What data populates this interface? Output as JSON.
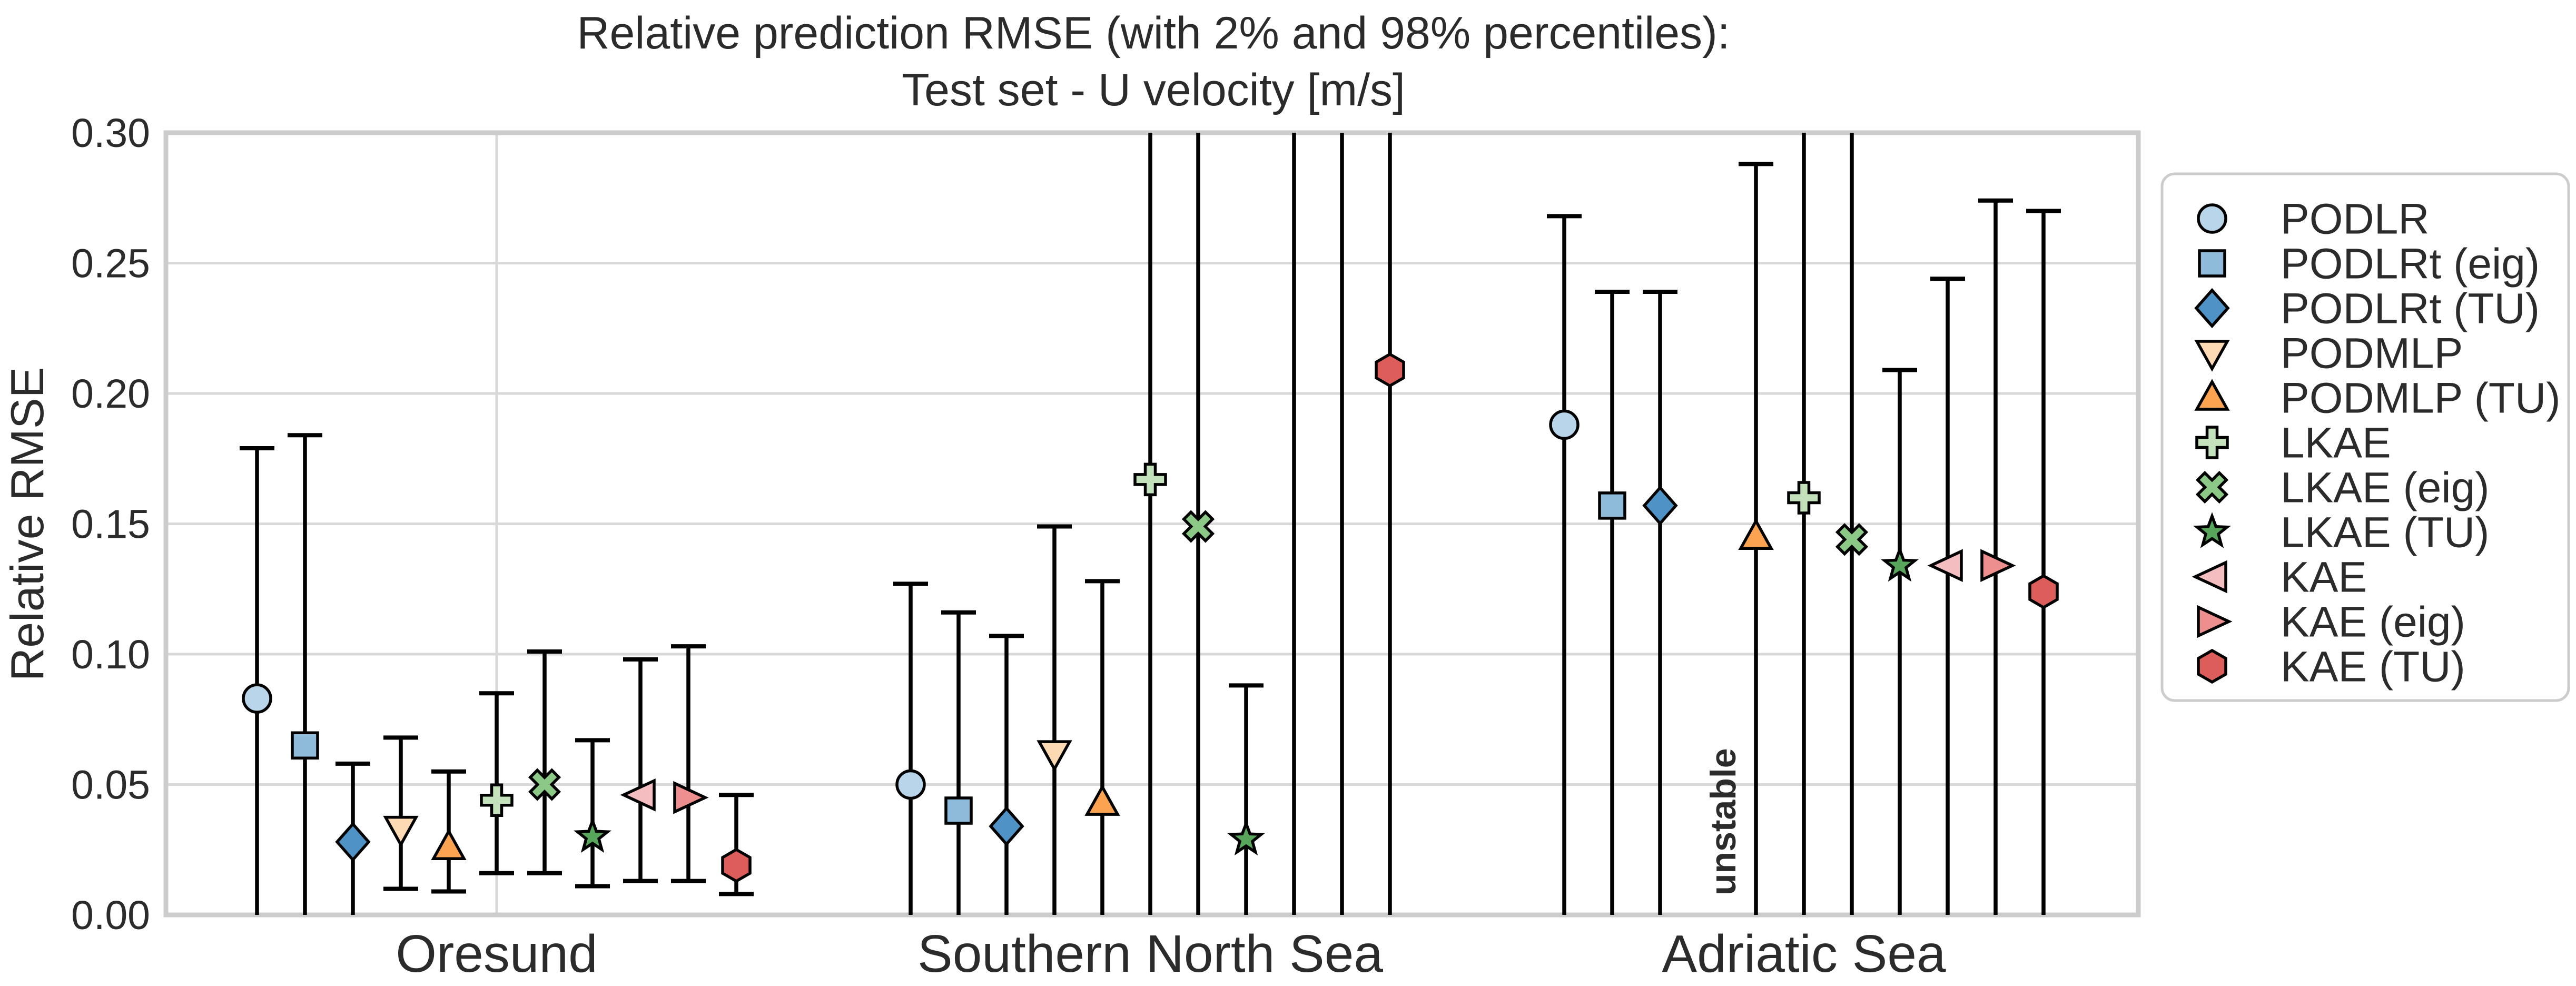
{
  "chart_data": {
    "type": "scatter",
    "subtype": "point-with-percentile-errorbars",
    "title_line1": "Relative prediction RMSE (with 2% and 98% percentiles):",
    "title_line2": "Test set - U velocity [m/s]",
    "ylabel": "Relative RMSE",
    "ylim": [
      0.0,
      0.3
    ],
    "yticks": [
      "0.00",
      "0.05",
      "0.10",
      "0.15",
      "0.20",
      "0.25",
      "0.30"
    ],
    "grid": "on",
    "legend_position": "right of plot",
    "errorbar_meaning": "2% and 98% percentiles",
    "categories": [
      "Oresund",
      "Southern North Sea",
      "Adriatic Sea"
    ],
    "series": [
      {
        "name": "PODLR",
        "marker": "circle",
        "color": "#b9d5ea",
        "values": [
          {
            "median": 0.083,
            "p2": null,
            "p98": 0.179
          },
          {
            "median": 0.05,
            "p2": null,
            "p98": 0.127
          },
          {
            "median": 0.188,
            "p2": null,
            "p98": 0.268
          }
        ]
      },
      {
        "name": "PODLRt (eig)",
        "marker": "square",
        "color": "#8fbbdb",
        "values": [
          {
            "median": 0.065,
            "p2": null,
            "p98": 0.184
          },
          {
            "median": 0.04,
            "p2": null,
            "p98": 0.116
          },
          {
            "median": 0.157,
            "p2": null,
            "p98": 0.239
          }
        ]
      },
      {
        "name": "PODLRt (TU)",
        "marker": "diamond",
        "color": "#4e92c6",
        "values": [
          {
            "median": 0.028,
            "p2": null,
            "p98": 0.058
          },
          {
            "median": 0.034,
            "p2": null,
            "p98": 0.107
          },
          {
            "median": 0.157,
            "p2": null,
            "p98": 0.239
          }
        ]
      },
      {
        "name": "PODMLP",
        "marker": "triangle-down",
        "color": "#fdd9b4",
        "values": [
          {
            "median": 0.033,
            "p2": 0.01,
            "p98": 0.068
          },
          {
            "median": 0.062,
            "p2": null,
            "p98": 0.149
          },
          {
            "median": null,
            "unstable": true
          }
        ]
      },
      {
        "name": "PODMLP (TU)",
        "marker": "triangle-up",
        "color": "#fca351",
        "values": [
          {
            "median": 0.026,
            "p2": 0.009,
            "p98": 0.055
          },
          {
            "median": 0.043,
            "p2": null,
            "p98": 0.128
          },
          {
            "median": 0.145,
            "p2": null,
            "p98": 0.288
          }
        ]
      },
      {
        "name": "LKAE",
        "marker": "plus",
        "color": "#c3e1ba",
        "values": [
          {
            "median": 0.044,
            "p2": 0.016,
            "p98": 0.085
          },
          {
            "median": 0.167,
            "p2": null,
            "p98": null
          },
          {
            "median": 0.16,
            "p2": null,
            "p98": null
          }
        ]
      },
      {
        "name": "LKAE (eig)",
        "marker": "x",
        "color": "#8cc987",
        "values": [
          {
            "median": 0.05,
            "p2": 0.016,
            "p98": 0.101
          },
          {
            "median": 0.149,
            "p2": null,
            "p98": null
          },
          {
            "median": 0.144,
            "p2": null,
            "p98": null
          }
        ]
      },
      {
        "name": "LKAE (TU)",
        "marker": "star",
        "color": "#57a65c",
        "values": [
          {
            "median": 0.03,
            "p2": 0.011,
            "p98": 0.067
          },
          {
            "median": 0.029,
            "p2": null,
            "p98": 0.088
          },
          {
            "median": 0.134,
            "p2": null,
            "p98": 0.209
          }
        ]
      },
      {
        "name": "KAE",
        "marker": "triangle-left",
        "color": "#f4bdc0",
        "values": [
          {
            "median": 0.046,
            "p2": 0.013,
            "p98": 0.098
          },
          {
            "median": null,
            "p2": null,
            "p98": null,
            "offscale": true
          },
          {
            "median": 0.134,
            "p2": null,
            "p98": 0.244
          }
        ]
      },
      {
        "name": "KAE (eig)",
        "marker": "triangle-right",
        "color": "#ed8f8e",
        "values": [
          {
            "median": 0.045,
            "p2": 0.013,
            "p98": 0.103
          },
          {
            "median": null,
            "p2": null,
            "p98": null,
            "offscale": true
          },
          {
            "median": 0.134,
            "p2": null,
            "p98": 0.274
          }
        ]
      },
      {
        "name": "KAE (TU)",
        "marker": "hexagon",
        "color": "#dd5d5b",
        "values": [
          {
            "median": 0.019,
            "p2": 0.008,
            "p98": 0.046
          },
          {
            "median": 0.209,
            "p2": null,
            "p98": null
          },
          {
            "median": 0.124,
            "p2": null,
            "p98": 0.27
          }
        ]
      }
    ],
    "annotations": [
      {
        "text": "unstable",
        "color": "#9c1212",
        "category_index": 2,
        "series_index": 3
      }
    ],
    "style": {
      "grid_color": "#d9d9d9",
      "spine_color": "#cccccc",
      "errorbar_color": "#000000",
      "text_color": "#2b2b2b"
    }
  }
}
